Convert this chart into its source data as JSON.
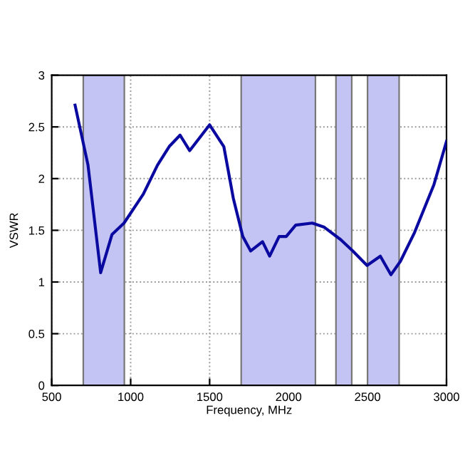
{
  "chart_data": {
    "type": "line",
    "xlabel": "Frequency, MHz",
    "ylabel": "VSWR",
    "x": [
      648,
      730,
      810,
      882,
      958,
      1080,
      1170,
      1244,
      1313,
      1374,
      1500,
      1590,
      1650,
      1710,
      1760,
      1835,
      1880,
      1940,
      1985,
      2045,
      2150,
      2226,
      2330,
      2407,
      2497,
      2581,
      2648,
      2708,
      2798,
      2920,
      3000
    ],
    "series": [
      {
        "color": "#0a0aa0",
        "values": [
          2.71,
          2.13,
          1.09,
          1.46,
          1.57,
          1.85,
          2.13,
          2.31,
          2.42,
          2.27,
          2.52,
          2.31,
          1.81,
          1.44,
          1.3,
          1.39,
          1.25,
          1.44,
          1.44,
          1.55,
          1.57,
          1.53,
          1.41,
          1.3,
          1.16,
          1.25,
          1.07,
          1.2,
          1.48,
          1.94,
          2.36
        ]
      }
    ],
    "bands": [
      {
        "axis": "x",
        "from": 700,
        "to": 960,
        "color": "#c4c4f4"
      },
      {
        "axis": "x",
        "from": 1700,
        "to": 2170,
        "color": "#c4c4f4"
      },
      {
        "axis": "x",
        "from": 2300,
        "to": 2400,
        "color": "#c4c4f4"
      },
      {
        "axis": "x",
        "from": 2500,
        "to": 2700,
        "color": "#c4c4f4"
      }
    ],
    "xlim": [
      500,
      3000
    ],
    "xticks": [
      500,
      1000,
      1500,
      2000,
      2500,
      3000
    ],
    "ylim": [
      0,
      3
    ],
    "yticks": [
      0,
      0.5,
      1,
      1.5,
      2,
      2.5,
      3
    ],
    "grid": true,
    "marker": "none",
    "line_style": "solid"
  }
}
